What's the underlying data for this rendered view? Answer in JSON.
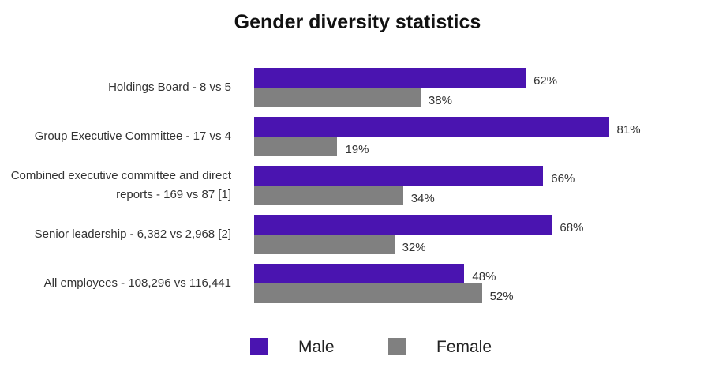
{
  "chart_data": {
    "type": "bar",
    "orientation": "horizontal",
    "title": "Gender diversity statistics",
    "categories": [
      "Holdings Board - 8 vs 5",
      "Group Executive Committee - 17 vs 4",
      "Combined executive committee and direct reports - 169 vs 87 [1]",
      "Senior leadership - 6,382 vs 2,968 [2]",
      "All employees - 108,296 vs 116,441"
    ],
    "category_label_lines": [
      [
        "Holdings Board - 8 vs 5"
      ],
      [
        "Group Executive Committee - 17 vs 4"
      ],
      [
        "Combined executive committee and direct",
        "reports - 169 vs 87 [1]"
      ],
      [
        "Senior leadership - 6,382 vs 2,968 [2]"
      ],
      [
        "All employees - 108,296 vs 116,441"
      ]
    ],
    "series": [
      {
        "name": "Male",
        "color": "#4a14b0",
        "values": [
          62,
          81,
          66,
          68,
          48
        ],
        "labels": [
          "62%",
          "81%",
          "66%",
          "68%",
          "48%"
        ]
      },
      {
        "name": "Female",
        "color": "#808080",
        "values": [
          38,
          19,
          34,
          32,
          52
        ],
        "labels": [
          "38%",
          "19%",
          "34%",
          "32%",
          "52%"
        ]
      }
    ],
    "xlim": [
      0,
      100
    ],
    "legend": {
      "position": "bottom",
      "items": [
        "Male",
        "Female"
      ]
    },
    "grid": false
  }
}
